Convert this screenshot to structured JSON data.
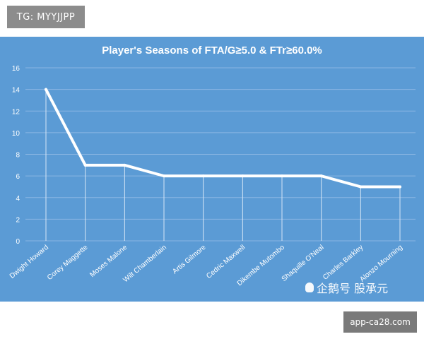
{
  "tag": {
    "text": "TG: MYYJJPP"
  },
  "watermark": {
    "text": "企鹅号 股承元"
  },
  "url_badge": {
    "text": "app-ca28.com"
  },
  "colors": {
    "background": "#5b9bd5",
    "line": "#ffffff",
    "grid": "#8ab6e3"
  },
  "chart_data": {
    "type": "line",
    "title": "Player's Seasons of FTA/G≥5.0 & FTr≥60.0%",
    "xlabel": "",
    "ylabel": "",
    "ylim": [
      0,
      16
    ],
    "yticks": [
      0,
      2,
      4,
      6,
      8,
      10,
      12,
      14,
      16
    ],
    "grid": "horizontal",
    "drop_lines": true,
    "categories": [
      "Dwight Howard",
      "Corey Maggette",
      "Moses Malone",
      "Wilt Chamberlain",
      "Artis Gilmore",
      "Cedric Maxwell",
      "Dikembe Mutombo",
      "Shaquille O'Neal",
      "Charles Barkley",
      "Alonzo Mourning"
    ],
    "series": [
      {
        "values": [
          14,
          7,
          7,
          6,
          6,
          6,
          6,
          6,
          5,
          5
        ]
      }
    ]
  }
}
